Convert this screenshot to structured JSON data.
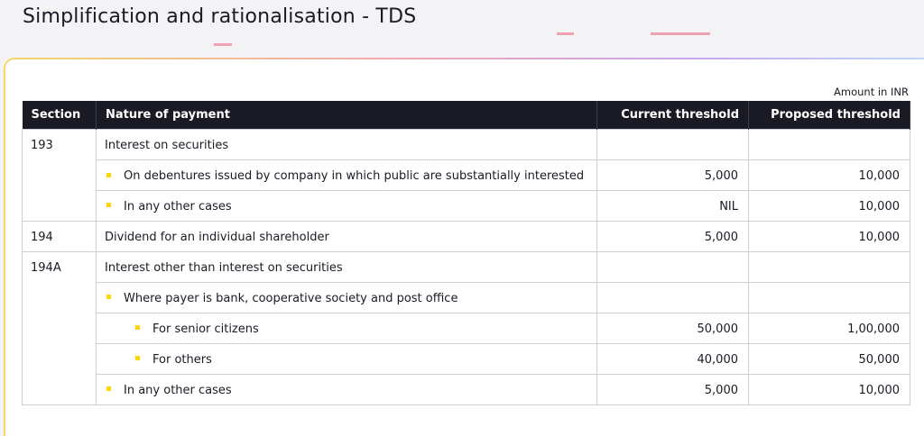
{
  "page": {
    "title": "Simplification and rationalisation - TDS"
  },
  "note": "Amount in INR",
  "table": {
    "headers": {
      "section": "Section",
      "nature": "Nature of payment",
      "current": "Current threshold",
      "proposed": "Proposed threshold"
    },
    "rows": [
      {
        "section": "193",
        "nature": "Interest on securities",
        "current": "",
        "proposed": ""
      },
      {
        "section": "",
        "nature": "On debentures issued by company in which public are substantially interested",
        "current": "5,000",
        "proposed": "10,000"
      },
      {
        "section": "",
        "nature": "In any other cases",
        "current": "NIL",
        "proposed": "10,000"
      },
      {
        "section": "194",
        "nature": "Dividend for an individual shareholder",
        "current": "5,000",
        "proposed": "10,000"
      },
      {
        "section": "194A",
        "nature": "Interest other than interest on securities",
        "current": "",
        "proposed": ""
      },
      {
        "section": "",
        "nature": "Where payer is bank, cooperative society and post office",
        "current": "",
        "proposed": ""
      },
      {
        "section": "",
        "nature": "For senior citizens",
        "current": "50,000",
        "proposed": "1,00,000"
      },
      {
        "section": "",
        "nature": "For others",
        "current": "40,000",
        "proposed": "50,000"
      },
      {
        "section": "",
        "nature": "In any other cases",
        "current": "5,000",
        "proposed": "10,000"
      }
    ]
  },
  "colors": {
    "header_bg": "#1a1a24",
    "bullet": "#ffd500",
    "accent_pink": "#f0a0ae",
    "panel_border": "#f4d86a"
  }
}
